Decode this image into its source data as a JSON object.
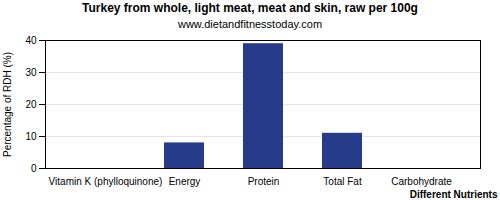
{
  "chart_data": {
    "type": "bar",
    "title": "Turkey from whole, light meat, meat and skin, raw per 100g",
    "subtitle": "www.dietandfitnesstoday.com",
    "x_label": "Different Nutrients",
    "y_label": "Percentage of RDH (%)",
    "categories": [
      "Vitamin K (phylloquinone)",
      "Energy",
      "Protein",
      "Total Fat",
      "Carbohydrate"
    ],
    "values": [
      0,
      8,
      39,
      11,
      0
    ],
    "color": "#263c8b",
    "ylim": [
      0,
      40
    ],
    "yticks": [
      0,
      10,
      20,
      30,
      40
    ],
    "grid": true
  }
}
